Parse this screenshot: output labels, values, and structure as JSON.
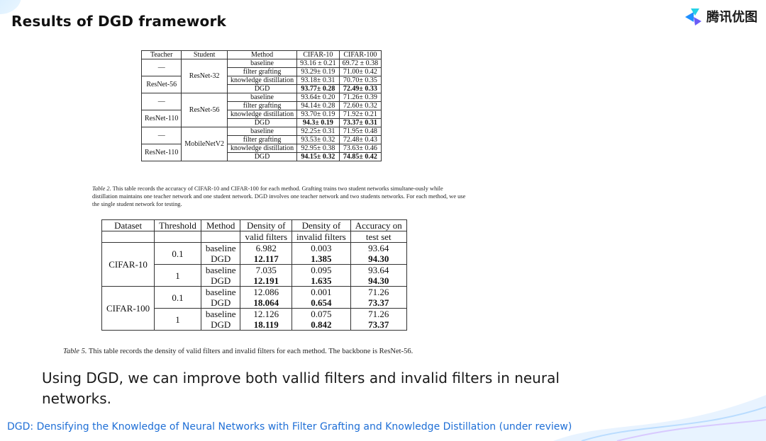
{
  "title": "Results of DGD framework",
  "logo": {
    "text": "腾讯优图"
  },
  "table2": {
    "headers": [
      "Teacher",
      "Student",
      "Method",
      "CIFAR-10",
      "CIFAR-100"
    ],
    "groups": [
      {
        "student": "ResNet-32",
        "teacher_none": "—",
        "teacher": "ResNet-56",
        "rows": [
          [
            "baseline",
            "93.16 ± 0.21",
            "69.72 ± 0.38"
          ],
          [
            "filter grafting",
            "93.29± 0.19",
            "71.00± 0.42"
          ],
          [
            "knowledge distillation",
            "93.18± 0.31",
            "70.70± 0.35"
          ],
          [
            "DGD",
            "93.77± 0.28",
            "72.49± 0.33"
          ]
        ]
      },
      {
        "student": "ResNet-56",
        "teacher_none": "—",
        "teacher": "ResNet-110",
        "rows": [
          [
            "baseline",
            "93.64± 0.20",
            "71.26± 0.39"
          ],
          [
            "filter grafting",
            "94.14± 0.28",
            "72.60± 0.32"
          ],
          [
            "knowledge distillation",
            "93.70± 0.19",
            "71.92± 0.21"
          ],
          [
            "DGD",
            "94.3± 0.19",
            "73.37± 0.31"
          ]
        ]
      },
      {
        "student": "MobileNetV2",
        "teacher_none": "—",
        "teacher": "ResNet-110",
        "rows": [
          [
            "baseline",
            "92.25± 0.31",
            "71.95± 0.48"
          ],
          [
            "filter grafting",
            "93.53± 0.32",
            "72.48± 0.43"
          ],
          [
            "knowledge distillation",
            "92.95± 0.38",
            "73.63± 0.46"
          ],
          [
            "DGD",
            "94.15± 0.32",
            "74.85± 0.42"
          ]
        ]
      }
    ],
    "caption_label": "Table 2.",
    "caption": "This table records the accuracy of CIFAR-10 and CIFAR-100 for each method. Grafting trains two student networks simultane-ously while distillation maintains one teacher network and one student network. DGD involves one teacher network and two students networks. For each method, we use the single student network for testing."
  },
  "table5": {
    "headers": [
      "Dataset",
      "Threshold",
      "Method",
      "Density of",
      "Density of",
      "Accuracy on"
    ],
    "headers2": [
      "valid filters",
      "invalid filters",
      "test set"
    ],
    "datasets": [
      {
        "name": "CIFAR-10",
        "blocks": [
          {
            "threshold": "0.1",
            "rows": [
              [
                "baseline",
                "6.982",
                "0.003",
                "93.64"
              ],
              [
                "DGD",
                "12.117",
                "1.385",
                "94.30"
              ]
            ]
          },
          {
            "threshold": "1",
            "rows": [
              [
                "baseline",
                "7.035",
                "0.095",
                "93.64"
              ],
              [
                "DGD",
                "12.191",
                "1.635",
                "94.30"
              ]
            ]
          }
        ]
      },
      {
        "name": "CIFAR-100",
        "blocks": [
          {
            "threshold": "0.1",
            "rows": [
              [
                "baseline",
                "12.086",
                "0.001",
                "71.26"
              ],
              [
                "DGD",
                "18.064",
                "0.654",
                "73.37"
              ]
            ]
          },
          {
            "threshold": "1",
            "rows": [
              [
                "baseline",
                "12.126",
                "0.075",
                "71.26"
              ],
              [
                "DGD",
                "18.119",
                "0.842",
                "73.37"
              ]
            ]
          }
        ]
      }
    ],
    "caption_label": "Table 5.",
    "caption": "This table records the density of valid filters and invalid filters for each method. The backbone is ResNet-56."
  },
  "body_text": "Using DGD, we can improve both vallid filters and invalid filters in neural networks.",
  "footer": "DGD: Densifying the Knowledge of Neural Networks with Filter Grafting and Knowledge Distillation (under review)",
  "colors": {
    "footer": "#1f6fd6",
    "logo_blue": "#1f8fff",
    "logo_cyan": "#25d1e6",
    "logo_purple": "#6b5cf6"
  }
}
